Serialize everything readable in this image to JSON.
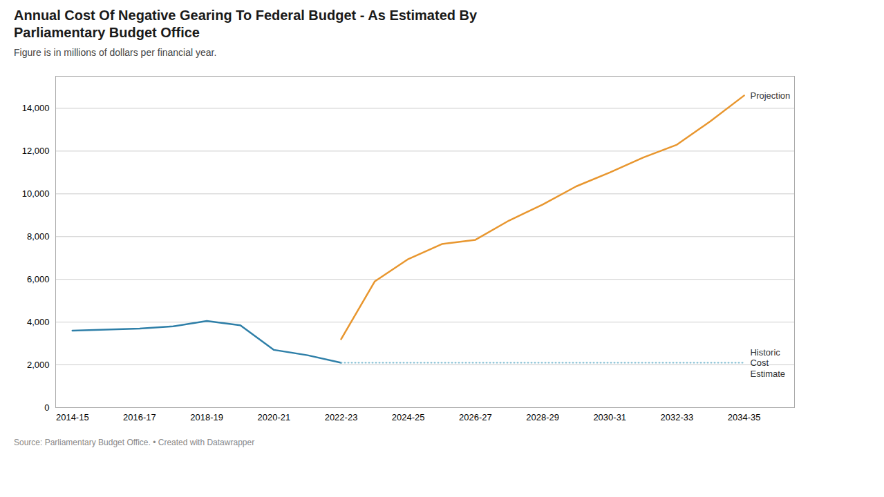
{
  "chart_data": {
    "type": "line",
    "title": "Annual Cost Of Negative Gearing To Federal Budget - As Estimated By\nParliamentary Budget Office",
    "subtitle": "Figure is in millions of dollars per financial year.",
    "source": "Source: Parliamentary Budget Office. • Created with Datawrapper",
    "series": [
      {
        "color": "#2e7fa8",
        "x": [
          2014,
          2015,
          2016,
          2017,
          2018,
          2019,
          2020,
          2021,
          2022
        ],
        "values": [
          3600,
          3650,
          3700,
          3800,
          4050,
          3850,
          2700,
          2450,
          2100
        ]
      },
      {
        "color": "#e8962e",
        "x": [
          2022,
          2023,
          2024,
          2025,
          2026,
          2027,
          2028,
          2029,
          2030,
          2031,
          2032,
          2033,
          2034
        ],
        "values": [
          3200,
          5900,
          6950,
          7650,
          7850,
          8750,
          9500,
          10350,
          11000,
          11700,
          12300,
          13400,
          14600
        ]
      },
      {
        "color": "#7fbcd1",
        "line_style": "dotted",
        "x": [
          2022,
          2034
        ],
        "values": [
          2100,
          2100
        ]
      }
    ],
    "annotations": [
      {
        "text": "Projection",
        "x": 2034.1,
        "y": 14600
      },
      {
        "text": "Historic\nCost\nEstimate",
        "x": 2034.1,
        "y": 2100
      }
    ],
    "xlim": [
      2013.5,
      2035.5
    ],
    "xticks": [
      {
        "value": 2014,
        "label": "2014-15"
      },
      {
        "value": 2016,
        "label": "2016-17"
      },
      {
        "value": 2018,
        "label": "2018-19"
      },
      {
        "value": 2020,
        "label": "2020-21"
      },
      {
        "value": 2022,
        "label": "2022-23"
      },
      {
        "value": 2024,
        "label": "2024-25"
      },
      {
        "value": 2026,
        "label": "2026-27"
      },
      {
        "value": 2028,
        "label": "2028-29"
      },
      {
        "value": 2030,
        "label": "2030-31"
      },
      {
        "value": 2032,
        "label": "2032-33"
      },
      {
        "value": 2034,
        "label": "2034-35"
      }
    ],
    "ylim": [
      0,
      15500
    ],
    "yticks": [
      0,
      {
        "value": 2000,
        "label": "2,000"
      },
      {
        "value": 4000,
        "label": "4,000"
      },
      {
        "value": 6000,
        "label": "6,000"
      },
      {
        "value": 8000,
        "label": "8,000"
      },
      {
        "value": 10000,
        "label": "10,000"
      },
      {
        "value": 12000,
        "label": "12,000"
      },
      {
        "value": 14000,
        "label": "14,000"
      }
    ],
    "grid": "y"
  }
}
